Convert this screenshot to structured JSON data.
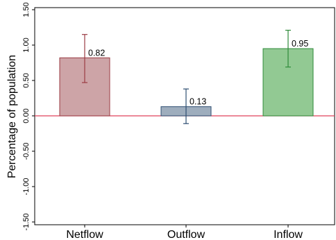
{
  "chart_data": {
    "type": "bar",
    "ylabel": "Percentage of population",
    "ylim": [
      -1.6,
      1.6
    ],
    "yticks": [
      -1.5,
      -1.0,
      -0.5,
      0.0,
      0.5,
      1.0,
      1.5
    ],
    "ytick_labels": [
      "-1.50",
      "-1.00",
      "-0.50",
      "0.00",
      "0.50",
      "1.00",
      "1.50"
    ],
    "categories": [
      "Netflow",
      "Outflow",
      "Inflow"
    ],
    "values": [
      0.82,
      0.13,
      0.95
    ],
    "value_labels": [
      "0.82",
      "0.13",
      "0.95"
    ],
    "ci_low": [
      0.47,
      -0.11,
      0.69
    ],
    "ci_high": [
      1.15,
      0.38,
      1.21
    ],
    "bar_fill_colors": [
      "#cda4a7",
      "#9eadbd",
      "#92c993"
    ],
    "bar_edge_colors": [
      "#9a3a42",
      "#2f4f72",
      "#2f8a3a"
    ],
    "errorbar_colors": [
      "#9a3a42",
      "#2f4f72",
      "#2f8a3a"
    ],
    "zero_line_color": "#e0405a",
    "grid": false
  }
}
